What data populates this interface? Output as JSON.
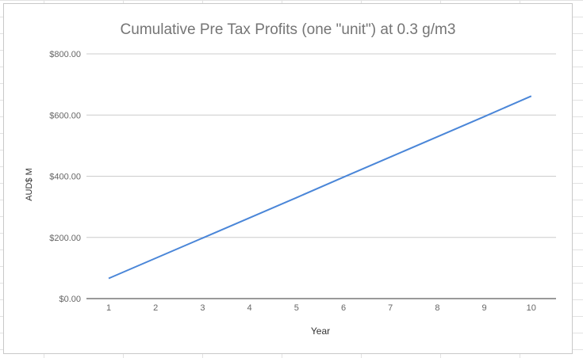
{
  "chart_data": {
    "type": "line",
    "title": "Cumulative Pre Tax Profits (one \"unit\") at 0.3 g/m3",
    "xlabel": "Year",
    "ylabel": "AUD$ M",
    "x": [
      "1",
      "2",
      "3",
      "4",
      "5",
      "6",
      "7",
      "8",
      "9",
      "10"
    ],
    "series": [
      {
        "values": [
          66,
          132,
          198,
          264,
          330,
          397,
          463,
          529,
          595,
          662
        ]
      }
    ],
    "yticks": [
      "$0.00",
      "$200.00",
      "$400.00",
      "$600.00",
      "$800.00"
    ],
    "ytick_values": [
      0,
      200,
      400,
      600,
      800
    ],
    "ylim": [
      0,
      800
    ],
    "grid": true,
    "legend": "none",
    "colors": {
      "line": "#4a86d8",
      "grid": "#cccccc",
      "axis": "#333333",
      "title": "#757575",
      "tick": "#666666"
    }
  }
}
